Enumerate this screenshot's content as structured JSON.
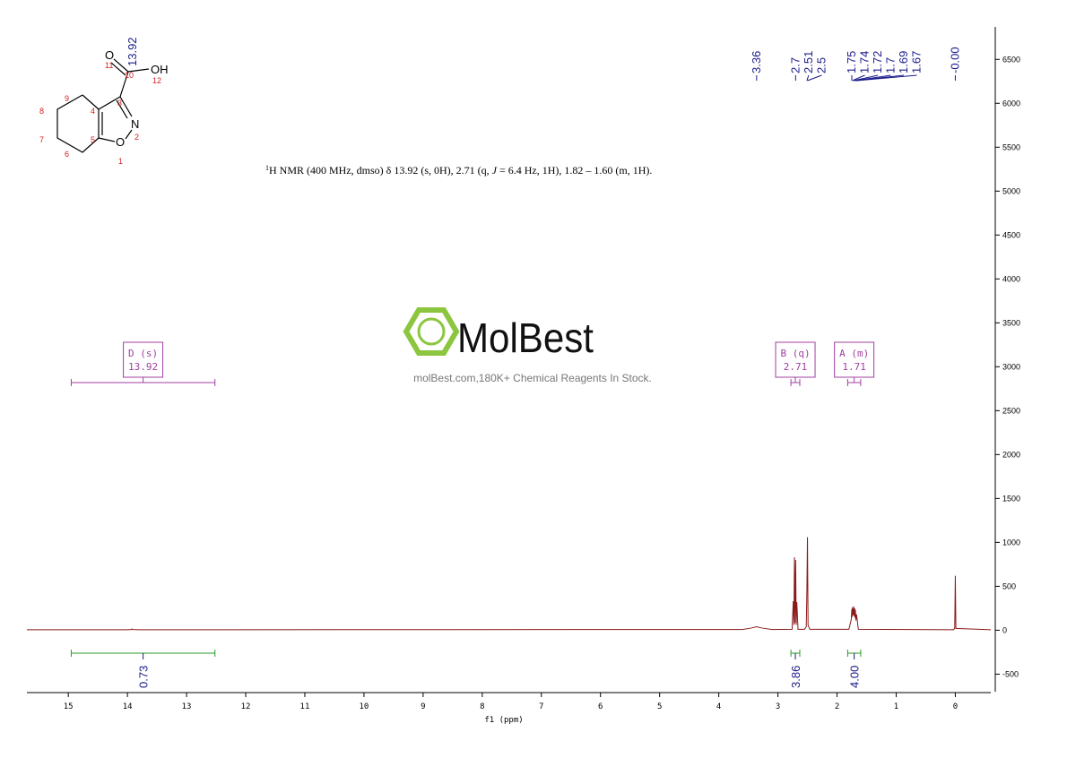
{
  "chart_data": {
    "type": "line",
    "title": {
      "sup": "1",
      "pre": "H NMR (400 MHz, dmso) δ 13.92 (s, 0H), 2.71 (q, ",
      "italic": "J",
      "post": " = 6.4 Hz, 1H), 1.82 – 1.60 (m, 1H)."
    },
    "xlabel": "f1 (ppm)",
    "xlim": [
      15.7,
      -0.6
    ],
    "xticks": [
      15,
      14,
      13,
      12,
      11,
      10,
      9,
      8,
      7,
      6,
      5,
      4,
      3,
      2,
      1,
      0
    ],
    "ylim": [
      -700,
      6870
    ],
    "yticks": [
      -500,
      0,
      500,
      1000,
      1500,
      2000,
      2500,
      3000,
      3500,
      4000,
      4500,
      5000,
      5500,
      6000,
      6500
    ],
    "series": [
      {
        "color": "#8b1a1a",
        "x": [
          15.7,
          14.0,
          13.93,
          13.92,
          13.91,
          13.8,
          3.6,
          3.45,
          3.36,
          3.27,
          3.1,
          2.76,
          2.74,
          2.73,
          2.72,
          2.71,
          2.7,
          2.69,
          2.68,
          2.66,
          2.55,
          2.52,
          2.51,
          2.5,
          2.49,
          2.46,
          1.8,
          1.76,
          1.75,
          1.745,
          1.74,
          1.73,
          1.72,
          1.71,
          1.7,
          1.695,
          1.69,
          1.68,
          1.67,
          1.64,
          0.03,
          0.01,
          0.0,
          -0.01,
          -0.6
        ],
        "values": [
          5,
          5,
          8,
          15,
          8,
          5,
          8,
          25,
          40,
          25,
          8,
          10,
          330,
          60,
          830,
          80,
          800,
          60,
          320,
          10,
          10,
          40,
          460,
          1060,
          60,
          10,
          10,
          120,
          240,
          150,
          260,
          170,
          270,
          160,
          250,
          140,
          230,
          110,
          180,
          10,
          5,
          20,
          620,
          20,
          5
        ]
      }
    ],
    "peak_labels": [
      3.36,
      2.7,
      2.51,
      2.5,
      1.75,
      1.74,
      1.72,
      1.7,
      1.69,
      1.67,
      {
        "value": 0,
        "label": "-0.00"
      }
    ],
    "multiplets": [
      {
        "name": "D (s)",
        "shift": 13.92,
        "range": [
          14.95,
          12.52
        ],
        "integral": 0.73
      },
      {
        "name": "B (q)",
        "shift": 2.71,
        "range": [
          2.78,
          2.63
        ],
        "integral": 3.86
      },
      {
        "name": "A (m)",
        "shift": 1.71,
        "range": [
          1.82,
          1.6
        ],
        "integral": {
          "value": 4,
          "label": "4.00"
        }
      }
    ],
    "grid": false
  },
  "structure": {
    "shift_label": "13.92",
    "atoms": [
      "O",
      "OH",
      "N",
      "O"
    ],
    "numbers": [
      "1",
      "2",
      "3",
      "4",
      "5",
      "6",
      "7",
      "8",
      "9",
      "10",
      "11",
      "12"
    ]
  },
  "watermark": {
    "brand": "MolBest",
    "tagline": "molBest.com,180K+ Chemical Reagents In Stock."
  }
}
